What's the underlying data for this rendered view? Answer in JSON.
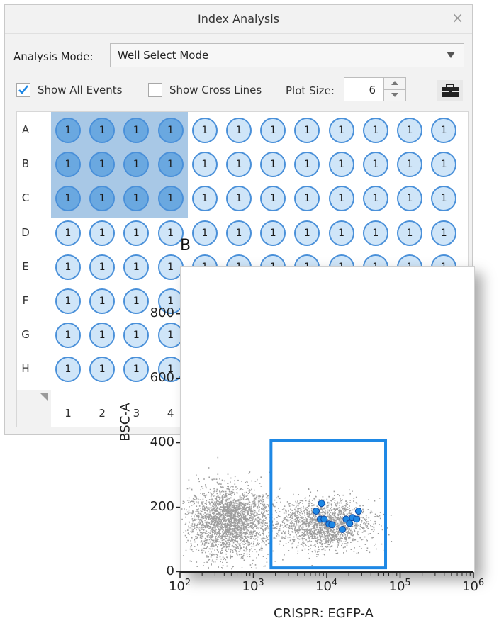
{
  "window": {
    "title": "Index Analysis",
    "close_glyph": "×"
  },
  "analysis_mode": {
    "label": "Analysis Mode:",
    "selected": "Well Select Mode"
  },
  "options": {
    "show_all_events": {
      "label": "Show All Events",
      "checked": true
    },
    "show_cross_lines": {
      "label": "Show Cross Lines",
      "checked": false
    },
    "plot_size": {
      "label": "Plot Size:",
      "value": "6"
    }
  },
  "toolbar": {
    "toolbox_icon": "toolbox-icon"
  },
  "plate": {
    "rows": [
      "A",
      "B",
      "C",
      "D",
      "E",
      "F",
      "G",
      "H"
    ],
    "columns": [
      "1",
      "2",
      "3",
      "4"
    ],
    "well_count_label": "1",
    "selected_rows": [
      "A",
      "B",
      "C"
    ],
    "selected_columns": [
      "1",
      "2",
      "3",
      "4"
    ]
  },
  "plot": {
    "panel_letter": "B",
    "colors": {
      "events": "#9e9e9e",
      "gate": "#1e88e5",
      "index_points": "#1e88e5"
    }
  },
  "chart_data": {
    "type": "scatter",
    "xlabel": "CRISPR: EGFP-A",
    "ylabel": "BSC-A",
    "xscale": "log",
    "xlim": [
      100,
      1000000
    ],
    "ylim": [
      0,
      950
    ],
    "x_ticks": [
      {
        "base": "10",
        "exp": "2"
      },
      {
        "base": "10",
        "exp": "3"
      },
      {
        "base": "10",
        "exp": "4"
      },
      {
        "base": "10",
        "exp": "5"
      },
      {
        "base": "10",
        "exp": "6"
      }
    ],
    "y_ticks": [
      "0",
      "200",
      "400",
      "600",
      "800"
    ],
    "series": [
      {
        "points": [
          [
            7000,
            190
          ],
          [
            8000,
            165
          ],
          [
            9000,
            165
          ],
          [
            8300,
            214
          ],
          [
            10500,
            150
          ],
          [
            11500,
            148
          ],
          [
            16000,
            133
          ],
          [
            18000,
            165
          ],
          [
            20000,
            152
          ],
          [
            22000,
            170
          ],
          [
            25000,
            165
          ],
          [
            26500,
            190
          ]
        ]
      }
    ],
    "gate": {
      "x": [
        1700,
        62000
      ],
      "y": [
        14,
        410
      ]
    },
    "populations": [
      {
        "x_center": 450,
        "y_center": 160,
        "x_spread_decades": 0.55,
        "y_spread": 95
      },
      {
        "x_center": 9000,
        "y_center": 150,
        "x_spread_decades": 0.6,
        "y_spread": 70
      }
    ]
  }
}
